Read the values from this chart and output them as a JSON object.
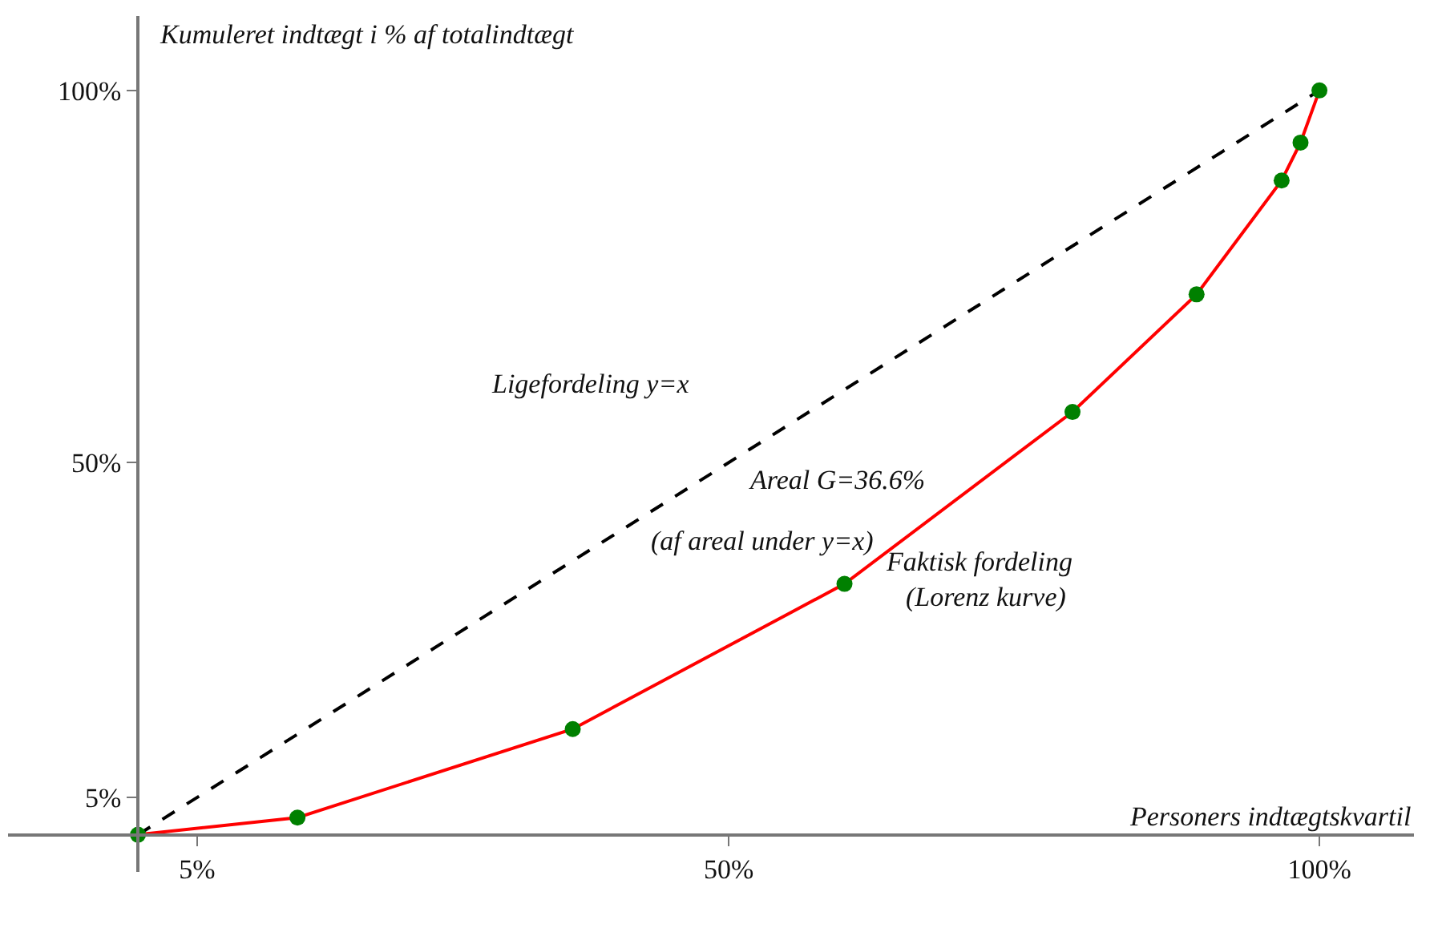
{
  "chart_data": {
    "type": "line",
    "xlabel": "Personers indtægtskvartil",
    "ylabel": "Kumuleret indtægt i % af totalindtægt",
    "xlim": [
      -11,
      108
    ],
    "ylim": [
      -5,
      110
    ],
    "xticks": [
      {
        "value": 5,
        "label": "5%"
      },
      {
        "value": 50,
        "label": "50%"
      },
      {
        "value": 100,
        "label": "100%"
      }
    ],
    "yticks": [
      {
        "value": 5,
        "label": "5%"
      },
      {
        "value": 50,
        "label": "50%"
      },
      {
        "value": 100,
        "label": "100%"
      }
    ],
    "grid": false,
    "series": [
      {
        "color": "#000000",
        "line_style": "dashed",
        "marker": "none",
        "x": [
          0,
          100
        ],
        "values": [
          0,
          100
        ]
      },
      {
        "color": "#ff0000",
        "line_style": "solid",
        "marker": "none",
        "x": [
          0,
          13.5,
          36.8,
          59.8,
          79.1,
          89.6,
          96.8,
          98.4,
          100
        ],
        "values": [
          0,
          2.3,
          14.2,
          33.7,
          56.8,
          72.6,
          87.9,
          93.0,
          100
        ]
      },
      {
        "type": "scatter",
        "color": "#008000",
        "marker": "circle",
        "x": [
          0,
          13.5,
          36.8,
          59.8,
          79.1,
          89.6,
          96.8,
          98.4,
          100
        ],
        "values": [
          0,
          2.3,
          14.2,
          33.7,
          56.8,
          72.6,
          87.9,
          93.0,
          100
        ]
      }
    ],
    "annotations": [
      "Ligefordeling y=x",
      "Areal G=36.6%",
      "(af areal under y=x)",
      "Faktisk fordeling",
      "(Lorenz kurve)"
    ]
  }
}
